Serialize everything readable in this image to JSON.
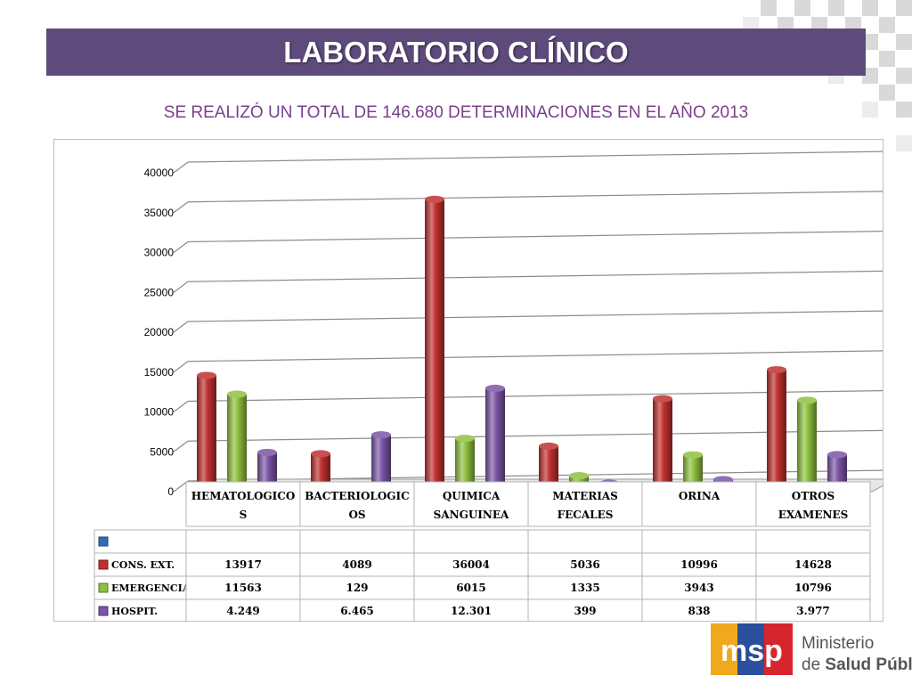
{
  "slide": {
    "title": "LABORATORIO CLÍNICO",
    "subtitle": "SE REALIZÓ UN TOTAL DE 146.680 DETERMINACIONES EN EL AÑO 2013"
  },
  "logo": {
    "mark": "msp",
    "line1": "Ministerio",
    "line2_prefix": "de ",
    "line2_bold": "Salud Pública"
  },
  "colors": {
    "title_bar": "#5e4b7b",
    "subtitle": "#7a3f8c",
    "cons_ext": "#c0312f",
    "emergencia": "#8fc13f",
    "hospit": "#7b55a6",
    "empty_series": "#2f6eb5"
  },
  "chart_data": {
    "type": "bar",
    "style": "3d-cylinder",
    "categories": [
      [
        "HEMATOLOGICO",
        "S"
      ],
      [
        "BACTERIOLOGIC",
        "OS"
      ],
      [
        "QUIMICA",
        "SANGUINEA"
      ],
      [
        "MATERIAS",
        "FECALES"
      ],
      [
        "ORINA",
        ""
      ],
      [
        "OTROS",
        "EXAMENES"
      ]
    ],
    "ylim": [
      0,
      40000
    ],
    "yticks": [
      0,
      5000,
      10000,
      15000,
      20000,
      25000,
      30000,
      35000,
      40000
    ],
    "grid": true,
    "legend": "data-table",
    "series": [
      {
        "name": "",
        "color": "#2f6eb5",
        "values": [
          null,
          null,
          null,
          null,
          null,
          null
        ],
        "labels": [
          "",
          "",
          "",
          "",
          "",
          ""
        ]
      },
      {
        "name": "CONS. EXT.",
        "color": "#c0312f",
        "values": [
          13917,
          4089,
          36004,
          5036,
          10996,
          14628
        ],
        "labels": [
          "13917",
          "4089",
          "36004",
          "5036",
          "10996",
          "14628"
        ]
      },
      {
        "name": "EMERGENCIA",
        "color": "#8fc13f",
        "values": [
          11563,
          129,
          6015,
          1335,
          3943,
          10796
        ],
        "labels": [
          "11563",
          "129",
          "6015",
          "1335",
          "3943",
          "10796"
        ]
      },
      {
        "name": "HOSPIT.",
        "color": "#7b55a6",
        "values": [
          4249,
          6465,
          12301,
          399,
          838,
          3977
        ],
        "labels": [
          "4.249",
          "6.465",
          "12.301",
          "399",
          "838",
          "3.977"
        ]
      }
    ]
  }
}
